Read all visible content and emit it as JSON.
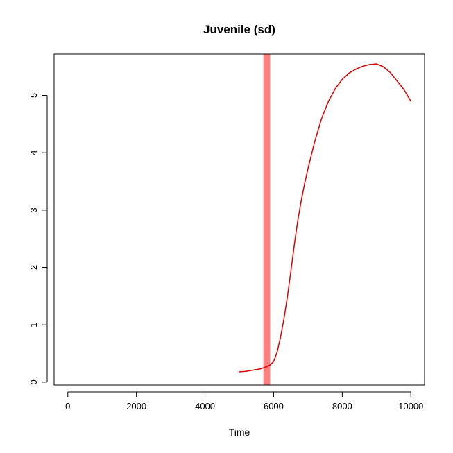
{
  "chart_data": {
    "type": "line",
    "title": "Juvenile (sd)",
    "xlabel": "Time",
    "ylabel": "",
    "xlim": [
      -400,
      10400
    ],
    "ylim": [
      -0.05,
      5.72
    ],
    "x_ticks": [
      0,
      2000,
      4000,
      6000,
      8000,
      10000
    ],
    "x_tick_labels": [
      "0",
      "2000",
      "4000",
      "6000",
      "8000",
      "10000"
    ],
    "y_ticks": [
      0,
      1,
      2,
      3,
      4,
      5
    ],
    "y_tick_labels": [
      "0",
      "1",
      "2",
      "3",
      "4",
      "5"
    ],
    "grid": false,
    "legend": "none",
    "vband": {
      "x_start": 5700,
      "x_end": 5900,
      "color": "#ff8080"
    },
    "series": [
      {
        "color": "#dd0000",
        "style": "dotted",
        "x": [
          5000,
          5200,
          5400,
          5600,
          5800,
          5900,
          6000,
          6100,
          6200,
          6300,
          6400,
          6500,
          6600,
          6700,
          6800,
          6900,
          7000,
          7200,
          7400,
          7600,
          7800,
          8000,
          8200,
          8400,
          8600,
          8800,
          9000,
          9200,
          9400,
          9600,
          9800,
          10000
        ],
        "y": [
          0.18,
          0.19,
          0.21,
          0.23,
          0.27,
          0.3,
          0.36,
          0.52,
          0.78,
          1.1,
          1.48,
          1.92,
          2.38,
          2.8,
          3.15,
          3.45,
          3.72,
          4.2,
          4.6,
          4.9,
          5.12,
          5.28,
          5.39,
          5.46,
          5.51,
          5.54,
          5.55,
          5.5,
          5.4,
          5.25,
          5.1,
          4.9
        ]
      }
    ]
  }
}
